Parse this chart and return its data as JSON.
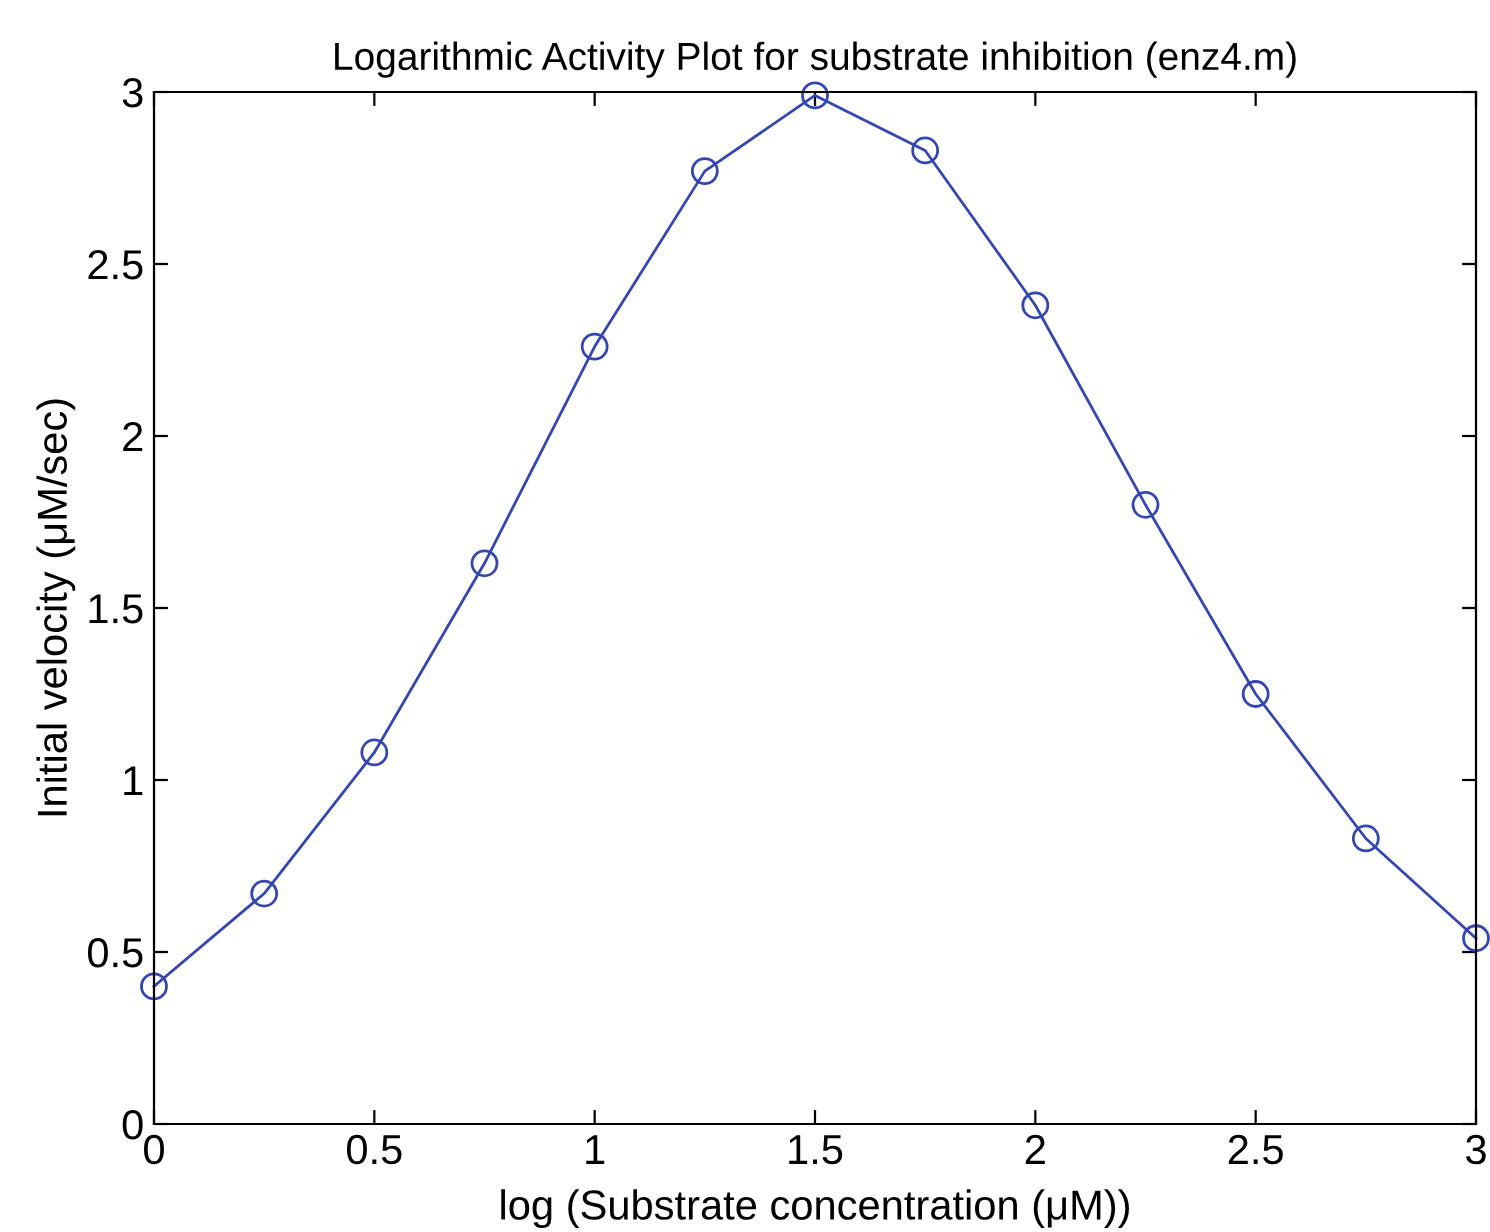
{
  "chart_data": {
    "type": "line",
    "title": "Logarithmic Activity Plot for substrate inhibition (enz4.m)",
    "xlabel": "log (Substrate concentration (μM))",
    "ylabel": "Initial velocity (μM/sec)",
    "x": [
      0,
      0.25,
      0.5,
      0.75,
      1,
      1.25,
      1.5,
      1.75,
      2,
      2.25,
      2.5,
      2.75,
      3
    ],
    "series": [
      {
        "color": "#3447b0",
        "values": [
          0.4,
          0.67,
          1.08,
          1.63,
          2.26,
          2.77,
          2.99,
          2.83,
          2.38,
          1.8,
          1.25,
          0.83,
          0.54
        ]
      }
    ],
    "xlim": [
      0,
      3
    ],
    "xticks": [
      0,
      0.5,
      1,
      1.5,
      2,
      2.5,
      3
    ],
    "ylim": [
      0,
      3
    ],
    "yticks": [
      0,
      0.5,
      1,
      1.5,
      2,
      2.5,
      3
    ],
    "marker": "circle",
    "line_style": "solid",
    "grid": false,
    "legend": false
  }
}
